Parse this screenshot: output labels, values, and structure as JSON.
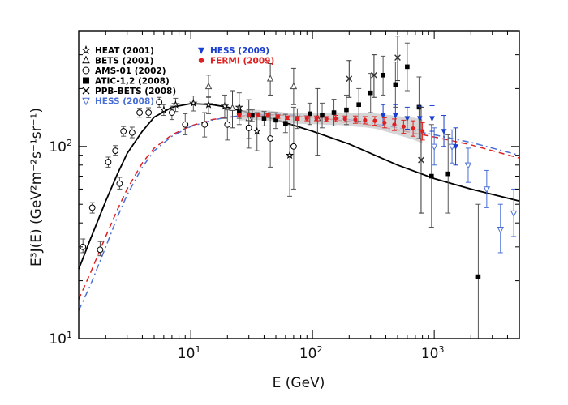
{
  "chart_data": {
    "type": "scatter",
    "title": "",
    "xlabel": "E (GeV)",
    "ylabel": "E³J(E) (GeV²m⁻²s⁻¹sr⁻¹)",
    "xscale": "log",
    "yscale": "log",
    "xlim": [
      1.2,
      5000
    ],
    "ylim": [
      10,
      400
    ],
    "grid": false,
    "legend_position": "top-left",
    "x_ticks": [
      {
        "value": 10,
        "base": "10",
        "exp": "1"
      },
      {
        "value": 100,
        "base": "10",
        "exp": "2"
      },
      {
        "value": 1000,
        "base": "10",
        "exp": "3"
      }
    ],
    "y_ticks": [
      {
        "value": 10,
        "base": "10",
        "exp": "1"
      },
      {
        "value": 100,
        "base": "10",
        "exp": "2"
      }
    ],
    "legend": {
      "left": [
        {
          "label": "HEAT (2001)",
          "marker": "star",
          "color": "#000000"
        },
        {
          "label": "BETS (2001)",
          "marker": "triangle",
          "color": "#000000"
        },
        {
          "label": "AMS-01 (2002)",
          "marker": "circle",
          "color": "#000000"
        },
        {
          "label": "ATIC-1,2 (2008)",
          "marker": "square",
          "color": "#000000"
        },
        {
          "label": "PPB-BETS (2008)",
          "marker": "cross",
          "color": "#000000"
        },
        {
          "label": "HESS (2008)",
          "marker": "triangle-down-open",
          "color": "#4a6fd6"
        }
      ],
      "right": [
        {
          "label": "HESS (2009)",
          "marker": "triangle-down-filled",
          "color": "#1a3fd0"
        },
        {
          "label": "FERMI (2009)",
          "marker": "circle-filled",
          "color": "#e02020"
        }
      ]
    },
    "curves": [
      {
        "style": "solid",
        "color": "#000000",
        "x": [
          1.2,
          1.5,
          2,
          2.5,
          3,
          4,
          5,
          7,
          10,
          15,
          20,
          30,
          50,
          100,
          200,
          500,
          1000,
          2000,
          5000
        ],
        "y": [
          23,
          33,
          52,
          72,
          92,
          120,
          142,
          160,
          167,
          165,
          160,
          150,
          138,
          120,
          103,
          80,
          68,
          60,
          52
        ]
      },
      {
        "style": "dashed",
        "color": "#e02020",
        "x": [
          1.2,
          1.5,
          2,
          2.5,
          3,
          4,
          5,
          7,
          10,
          15,
          20,
          30,
          50,
          100,
          200,
          500,
          1000,
          2000,
          5000
        ],
        "y": [
          16,
          22,
          34,
          47,
          60,
          82,
          98,
          115,
          128,
          138,
          142,
          145,
          146,
          142,
          135,
          122,
          112,
          102,
          87
        ]
      },
      {
        "style": "dashdot",
        "color": "#4a6fd6",
        "x": [
          1.2,
          1.5,
          2,
          2.5,
          3,
          4,
          5,
          7,
          10,
          15,
          20,
          30,
          50,
          100,
          200,
          500,
          1000,
          2000,
          5000
        ],
        "y": [
          14,
          19,
          30,
          43,
          56,
          78,
          95,
          113,
          127,
          137,
          142,
          146,
          147,
          144,
          138,
          125,
          115,
          105,
          90
        ]
      }
    ],
    "series": [
      {
        "name": "HEAT (2001)",
        "marker": "star",
        "color": "#000000",
        "points": [
          {
            "x": 6,
            "y": 155,
            "lo": 145,
            "hi": 165
          },
          {
            "x": 7.5,
            "y": 165,
            "lo": 152,
            "hi": 178
          },
          {
            "x": 10.5,
            "y": 168,
            "lo": 153,
            "hi": 183
          },
          {
            "x": 14,
            "y": 165,
            "lo": 148,
            "hi": 182
          },
          {
            "x": 19,
            "y": 162,
            "lo": 140,
            "hi": 185
          },
          {
            "x": 25,
            "y": 160,
            "lo": 130,
            "hi": 190
          },
          {
            "x": 35,
            "y": 120,
            "lo": 95,
            "hi": 150
          },
          {
            "x": 65,
            "y": 90,
            "lo": 55,
            "hi": 130
          }
        ]
      },
      {
        "name": "BETS (2001)",
        "marker": "triangle",
        "color": "#444444",
        "points": [
          {
            "x": 14,
            "y": 205,
            "lo": 180,
            "hi": 235
          },
          {
            "x": 22,
            "y": 158,
            "lo": 125,
            "hi": 195
          },
          {
            "x": 30,
            "y": 140,
            "lo": 110,
            "hi": 175
          },
          {
            "x": 45,
            "y": 225,
            "lo": 185,
            "hi": 270
          },
          {
            "x": 70,
            "y": 205,
            "lo": 165,
            "hi": 255
          },
          {
            "x": 110,
            "y": 140,
            "lo": 90,
            "hi": 200
          }
        ]
      },
      {
        "name": "AMS-01 (2002)",
        "marker": "circle",
        "color": "#000000",
        "points": [
          {
            "x": 1.3,
            "y": 30,
            "lo": 28,
            "hi": 33
          },
          {
            "x": 1.55,
            "y": 48,
            "lo": 45,
            "hi": 51
          },
          {
            "x": 1.8,
            "y": 29,
            "lo": 27,
            "hi": 32
          },
          {
            "x": 2.1,
            "y": 83,
            "lo": 78,
            "hi": 88
          },
          {
            "x": 2.4,
            "y": 95,
            "lo": 90,
            "hi": 101
          },
          {
            "x": 2.6,
            "y": 64,
            "lo": 60,
            "hi": 69
          },
          {
            "x": 2.8,
            "y": 120,
            "lo": 113,
            "hi": 127
          },
          {
            "x": 3.3,
            "y": 118,
            "lo": 111,
            "hi": 126
          },
          {
            "x": 3.8,
            "y": 150,
            "lo": 142,
            "hi": 158
          },
          {
            "x": 4.5,
            "y": 150,
            "lo": 141,
            "hi": 159
          },
          {
            "x": 5.5,
            "y": 170,
            "lo": 160,
            "hi": 180
          },
          {
            "x": 7,
            "y": 150,
            "lo": 138,
            "hi": 162
          },
          {
            "x": 9,
            "y": 130,
            "lo": 115,
            "hi": 148
          },
          {
            "x": 13,
            "y": 130,
            "lo": 112,
            "hi": 150
          },
          {
            "x": 20,
            "y": 130,
            "lo": 108,
            "hi": 155
          },
          {
            "x": 30,
            "y": 125,
            "lo": 98,
            "hi": 155
          },
          {
            "x": 45,
            "y": 110,
            "lo": 78,
            "hi": 150
          },
          {
            "x": 70,
            "y": 100,
            "lo": 60,
            "hi": 160
          }
        ]
      },
      {
        "name": "ATIC-1,2 (2008)",
        "marker": "square",
        "color": "#000000",
        "points": [
          {
            "x": 25,
            "y": 150,
            "lo": 140,
            "hi": 161
          },
          {
            "x": 32,
            "y": 145,
            "lo": 135,
            "hi": 155
          },
          {
            "x": 40,
            "y": 140,
            "lo": 128,
            "hi": 152
          },
          {
            "x": 50,
            "y": 137,
            "lo": 124,
            "hi": 150
          },
          {
            "x": 60,
            "y": 132,
            "lo": 118,
            "hi": 147
          },
          {
            "x": 75,
            "y": 140,
            "lo": 124,
            "hi": 157
          },
          {
            "x": 95,
            "y": 148,
            "lo": 130,
            "hi": 168
          },
          {
            "x": 120,
            "y": 145,
            "lo": 125,
            "hi": 168
          },
          {
            "x": 150,
            "y": 150,
            "lo": 128,
            "hi": 176
          },
          {
            "x": 190,
            "y": 155,
            "lo": 130,
            "hi": 185
          },
          {
            "x": 240,
            "y": 165,
            "lo": 135,
            "hi": 200
          },
          {
            "x": 300,
            "y": 190,
            "lo": 150,
            "hi": 240
          },
          {
            "x": 380,
            "y": 235,
            "lo": 185,
            "hi": 295
          },
          {
            "x": 480,
            "y": 210,
            "lo": 160,
            "hi": 275
          },
          {
            "x": 600,
            "y": 260,
            "lo": 195,
            "hi": 345
          },
          {
            "x": 750,
            "y": 160,
            "lo": 110,
            "hi": 230
          },
          {
            "x": 950,
            "y": 70,
            "lo": 38,
            "hi": 130
          },
          {
            "x": 1300,
            "y": 72,
            "lo": 45,
            "hi": 115
          },
          {
            "x": 2300,
            "y": 21,
            "lo": 10,
            "hi": 50
          }
        ]
      },
      {
        "name": "PPB-BETS (2008)",
        "marker": "cross",
        "color": "#333333",
        "points": [
          {
            "x": 200,
            "y": 225,
            "lo": 180,
            "hi": 280
          },
          {
            "x": 320,
            "y": 235,
            "lo": 180,
            "hi": 300
          },
          {
            "x": 500,
            "y": 290,
            "lo": 220,
            "hi": 375
          },
          {
            "x": 780,
            "y": 85,
            "lo": 45,
            "hi": 160
          }
        ]
      },
      {
        "name": "HESS (2008)",
        "marker": "triangle-down-open",
        "color": "#4a6fd6",
        "points": [
          {
            "x": 1000,
            "y": 100,
            "lo": 80,
            "hi": 125
          },
          {
            "x": 1400,
            "y": 100,
            "lo": 82,
            "hi": 122
          },
          {
            "x": 1900,
            "y": 80,
            "lo": 65,
            "hi": 98
          },
          {
            "x": 2700,
            "y": 60,
            "lo": 48,
            "hi": 75
          },
          {
            "x": 3500,
            "y": 37,
            "lo": 28,
            "hi": 50
          },
          {
            "x": 4500,
            "y": 45,
            "lo": 34,
            "hi": 60
          }
        ]
      },
      {
        "name": "HESS (2009)",
        "marker": "triangle-down-filled",
        "color": "#1a3fd0",
        "points": [
          {
            "x": 380,
            "y": 145,
            "lo": 128,
            "hi": 165
          },
          {
            "x": 480,
            "y": 145,
            "lo": 128,
            "hi": 165
          },
          {
            "x": 600,
            "y": 140,
            "lo": 123,
            "hi": 160
          },
          {
            "x": 760,
            "y": 140,
            "lo": 122,
            "hi": 162
          },
          {
            "x": 960,
            "y": 140,
            "lo": 120,
            "hi": 163
          },
          {
            "x": 1200,
            "y": 120,
            "lo": 100,
            "hi": 145
          },
          {
            "x": 1500,
            "y": 100,
            "lo": 80,
            "hi": 125
          }
        ]
      },
      {
        "name": "FERMI (2009)",
        "marker": "circle-filled",
        "color": "#e02020",
        "points": [
          {
            "x": 25,
            "y": 145,
            "lo": 142,
            "hi": 148
          },
          {
            "x": 30,
            "y": 146,
            "lo": 143,
            "hi": 149
          },
          {
            "x": 36,
            "y": 146,
            "lo": 143,
            "hi": 149
          },
          {
            "x": 43,
            "y": 145,
            "lo": 142,
            "hi": 148
          },
          {
            "x": 52,
            "y": 143,
            "lo": 140,
            "hi": 146
          },
          {
            "x": 62,
            "y": 141,
            "lo": 138,
            "hi": 144
          },
          {
            "x": 75,
            "y": 140,
            "lo": 137,
            "hi": 143
          },
          {
            "x": 90,
            "y": 140,
            "lo": 136,
            "hi": 144
          },
          {
            "x": 108,
            "y": 140,
            "lo": 136,
            "hi": 144
          },
          {
            "x": 130,
            "y": 139,
            "lo": 135,
            "hi": 143
          },
          {
            "x": 155,
            "y": 140,
            "lo": 135,
            "hi": 145
          },
          {
            "x": 185,
            "y": 139,
            "lo": 134,
            "hi": 144
          },
          {
            "x": 225,
            "y": 138,
            "lo": 132,
            "hi": 144
          },
          {
            "x": 270,
            "y": 137,
            "lo": 131,
            "hi": 143
          },
          {
            "x": 325,
            "y": 136,
            "lo": 129,
            "hi": 143
          },
          {
            "x": 390,
            "y": 133,
            "lo": 125,
            "hi": 141
          },
          {
            "x": 470,
            "y": 130,
            "lo": 121,
            "hi": 139
          },
          {
            "x": 560,
            "y": 127,
            "lo": 117,
            "hi": 137
          },
          {
            "x": 670,
            "y": 124,
            "lo": 113,
            "hi": 136
          },
          {
            "x": 800,
            "y": 120,
            "lo": 108,
            "hi": 133
          }
        ]
      }
    ]
  }
}
